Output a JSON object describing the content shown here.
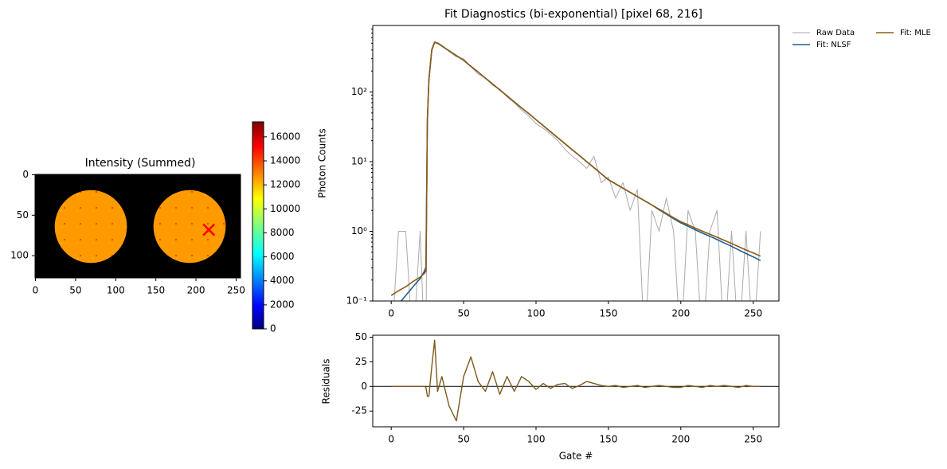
{
  "chart_data": [
    {
      "type": "image",
      "title": "Intensity (Summed)",
      "colormap": "jet",
      "xlim": [
        -0.5,
        255.5
      ],
      "ylim": [
        127.5,
        -0.5
      ],
      "xticks": [
        0,
        50,
        100,
        150,
        200,
        250
      ],
      "yticks": [
        0,
        50,
        100
      ],
      "disks": [
        {
          "cx": 69,
          "cy": 64,
          "r": 45
        },
        {
          "cx": 192,
          "cy": 64,
          "r": 45
        }
      ],
      "marker": {
        "x": 216,
        "y": 68,
        "color": "#ff0000"
      },
      "clim": [
        0,
        17250
      ],
      "cticks": [
        0,
        2000,
        4000,
        6000,
        8000,
        10000,
        12000,
        14000,
        16000
      ]
    },
    {
      "type": "line",
      "title": "Fit Diagnostics (bi-exponential)  [pixel 68, 216]",
      "y_label": "Photon Counts",
      "log_y": true,
      "xlim": [
        -12.75,
        267.75
      ],
      "ylim": [
        0.1,
        900
      ],
      "xticks": [
        0,
        50,
        100,
        150,
        200,
        250
      ],
      "yticks": [
        {
          "value": 0.1,
          "label": "10⁻¹"
        },
        {
          "value": 1,
          "label": "10⁰"
        },
        {
          "value": 10,
          "label": "10¹"
        },
        {
          "value": 100,
          "label": "10²"
        }
      ],
      "legend": "outside-right",
      "x": [
        0,
        5,
        10,
        15,
        20,
        23,
        24,
        25,
        26,
        28,
        30,
        32,
        35,
        40,
        45,
        50,
        55,
        60,
        65,
        70,
        75,
        80,
        85,
        90,
        95,
        100,
        105,
        110,
        115,
        120,
        125,
        130,
        135,
        140,
        145,
        150,
        155,
        160,
        165,
        170,
        175,
        180,
        185,
        190,
        195,
        200,
        205,
        210,
        215,
        220,
        225,
        230,
        235,
        240,
        245,
        250,
        255
      ],
      "series": [
        {
          "name": "Raw Data",
          "color": "#aaaaaa",
          "width": 1,
          "values": [
            0,
            1,
            1,
            0,
            1,
            0,
            0,
            30,
            140,
            420,
            530,
            510,
            470,
            380,
            320,
            300,
            230,
            180,
            160,
            125,
            110,
            85,
            70,
            55,
            45,
            35,
            30,
            25,
            20,
            15,
            12,
            10,
            8,
            12,
            5,
            6,
            3,
            5,
            2,
            4,
            0,
            2,
            1,
            3,
            1,
            0,
            2,
            1,
            0,
            1,
            2,
            0,
            1,
            0,
            1,
            0,
            1
          ]
        },
        {
          "name": "Fit: NLSF",
          "color": "#1f5f8f",
          "width": 1.6,
          "values": [
            0.05,
            0.09,
            0.12,
            0.16,
            0.21,
            0.27,
            0.31,
            40,
            150,
            400,
            515,
            500,
            457,
            390,
            333,
            285,
            234,
            193,
            158,
            130,
            107,
            88,
            72,
            59,
            49,
            40,
            32.8,
            26.9,
            22.0,
            18.1,
            14.8,
            12.2,
            10.0,
            8.2,
            6.7,
            5.5,
            4.79,
            4.16,
            3.62,
            3.15,
            2.74,
            2.39,
            2.04,
            1.76,
            1.52,
            1.32,
            1.18,
            1.05,
            0.94,
            0.85,
            0.76,
            0.68,
            0.61,
            0.54,
            0.48,
            0.43,
            0.38
          ]
        },
        {
          "name": "Fit: MLE",
          "color": "#8c5a14",
          "width": 1.6,
          "values": [
            0.12,
            0.14,
            0.16,
            0.19,
            0.22,
            0.25,
            0.27,
            40,
            150,
            400,
            515,
            500,
            457,
            390,
            333,
            285,
            234,
            193,
            158,
            130,
            107,
            88,
            72,
            59,
            49,
            40,
            32.8,
            26.9,
            22.0,
            18.1,
            14.8,
            12.2,
            10.0,
            8.2,
            6.7,
            5.5,
            4.79,
            4.16,
            3.62,
            3.15,
            2.74,
            2.39,
            2.08,
            1.81,
            1.57,
            1.37,
            1.24,
            1.11,
            1.0,
            0.91,
            0.82,
            0.74,
            0.67,
            0.6,
            0.54,
            0.49,
            0.44
          ]
        }
      ]
    },
    {
      "type": "line",
      "y_label": "Residuals",
      "x_label": "Gate #",
      "xlim": [
        -12.75,
        267.75
      ],
      "ylim": [
        -41,
        52
      ],
      "xticks": [
        0,
        50,
        100,
        150,
        200,
        250
      ],
      "yticks": [
        -25,
        0,
        25,
        50
      ],
      "hline": 0,
      "x": [
        0,
        5,
        10,
        15,
        20,
        23,
        24,
        25,
        26,
        28,
        30,
        32,
        35,
        40,
        45,
        50,
        55,
        60,
        65,
        70,
        75,
        80,
        85,
        90,
        95,
        100,
        105,
        110,
        115,
        120,
        125,
        130,
        135,
        140,
        145,
        150,
        155,
        160,
        165,
        170,
        175,
        180,
        185,
        190,
        195,
        200,
        205,
        210,
        215,
        220,
        225,
        230,
        235,
        240,
        245,
        250,
        255
      ],
      "series": [
        {
          "color": "#7b5a1d",
          "width": 1.4,
          "values": [
            0,
            0,
            0,
            0,
            0,
            0,
            -1,
            -10,
            -10,
            20,
            47,
            -5,
            10,
            -20,
            -35,
            10,
            30,
            5,
            -5,
            15,
            -8,
            10,
            -5,
            10,
            5,
            -3,
            3,
            -2,
            2,
            3,
            -2,
            1,
            5,
            3,
            1,
            0,
            1,
            -1,
            0,
            1,
            -1,
            0,
            1,
            0,
            -1,
            -1,
            1,
            0,
            -1,
            1,
            0,
            1,
            0,
            -1,
            1,
            0,
            0
          ]
        }
      ]
    }
  ]
}
